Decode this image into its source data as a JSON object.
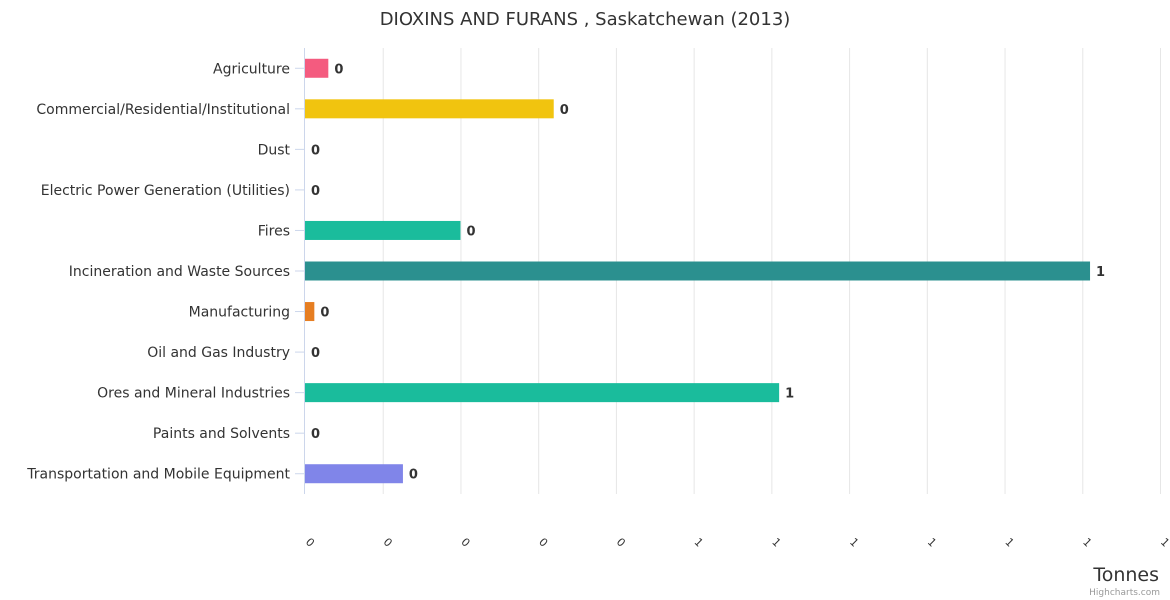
{
  "chart_data": {
    "type": "bar",
    "orientation": "horizontal",
    "title": "DIOXINS AND FURANS , Saskatchewan (2013)",
    "xlabel": "",
    "ylabel": "Tonnes",
    "categories": [
      "Agriculture",
      "Commercial/Residential/Institutional",
      "Dust",
      "Electric Power Generation (Utilities)",
      "Fires",
      "Incineration and Waste Sources",
      "Manufacturing",
      "Oil and Gas Industry",
      "Ores and Mineral Industries",
      "Paints and Solvents",
      "Transportation and Mobile Equipment"
    ],
    "values": [
      0.03,
      0.32,
      0,
      0,
      0.2,
      1.01,
      0.012,
      0,
      0.61,
      0,
      0.126
    ],
    "data_labels": [
      "0",
      "0",
      "0",
      "0",
      "0",
      "1",
      "0",
      "0",
      "1",
      "0",
      "0"
    ],
    "colors": [
      "#f45b7f",
      "#f1c40f",
      "#2b908f",
      "#2b908f",
      "#1abc9c",
      "#2b908f",
      "#e67e22",
      "#2b908f",
      "#1abc9c",
      "#2b908f",
      "#8085e9"
    ],
    "ylim": [
      0,
      1.1
    ],
    "ticks": [
      0,
      0.1,
      0.2,
      0.3,
      0.4,
      0.5,
      0.6,
      0.7,
      0.8,
      0.9,
      1.0,
      1.1
    ],
    "tick_labels": [
      "0",
      "0",
      "0",
      "0",
      "0",
      "1",
      "1",
      "1",
      "1",
      "1",
      "1",
      "1"
    ],
    "grid": true,
    "legend": "none",
    "credits": "Highcharts.com"
  }
}
